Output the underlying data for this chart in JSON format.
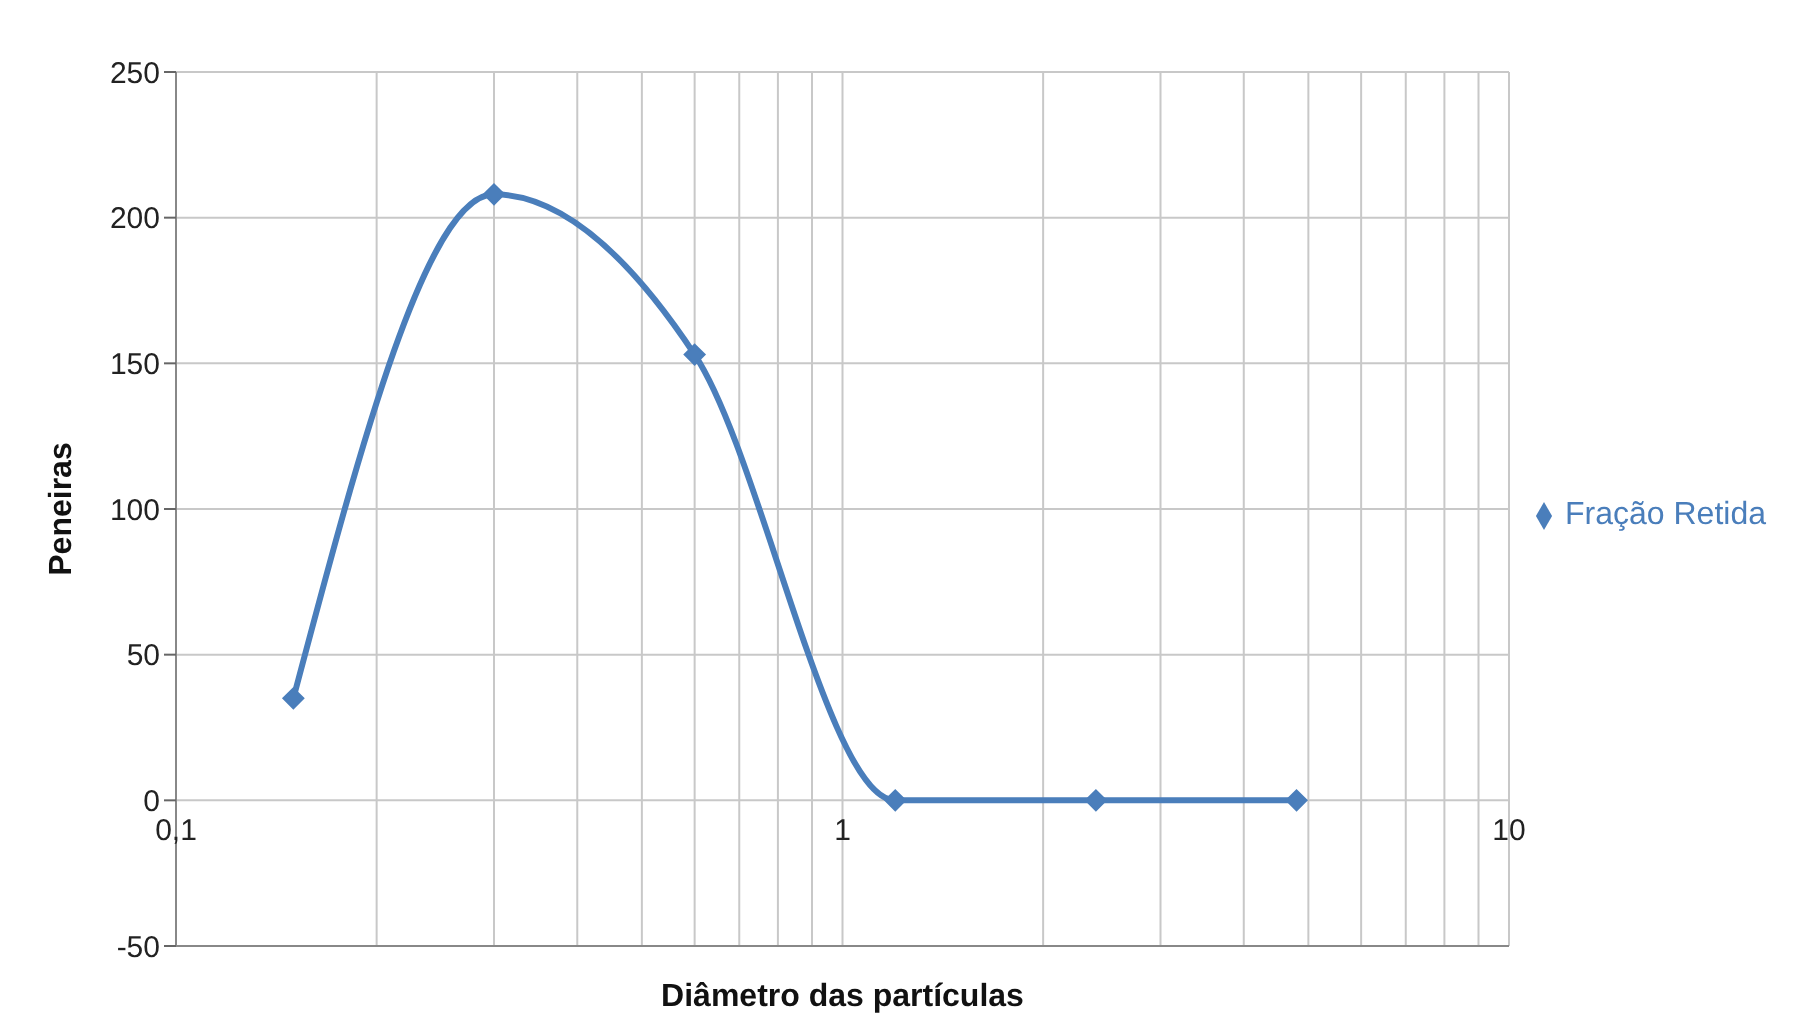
{
  "chart_data": {
    "type": "line",
    "xlabel": "Diâmetro das partículas",
    "ylabel": "Peneiras",
    "x": [
      0.15,
      0.3,
      0.6,
      1.2,
      2.4,
      4.8
    ],
    "series": [
      {
        "name": "Fração Retida",
        "color": "#4a7ebb",
        "values": [
          35,
          208,
          153,
          0,
          0,
          0
        ]
      }
    ],
    "log": "x",
    "xlim": [
      0.1,
      10
    ],
    "xticks": [
      {
        "value": 0.1,
        "label": "0,1"
      },
      {
        "value": 0.2,
        "label": null
      },
      {
        "value": 0.3,
        "label": null
      },
      {
        "value": 0.4,
        "label": null
      },
      {
        "value": 0.5,
        "label": null
      },
      {
        "value": 0.6,
        "label": null
      },
      {
        "value": 0.7,
        "label": null
      },
      {
        "value": 0.8,
        "label": null
      },
      {
        "value": 0.9,
        "label": null
      },
      {
        "value": 1,
        "label": "1"
      },
      {
        "value": 2,
        "label": null
      },
      {
        "value": 3,
        "label": null
      },
      {
        "value": 4,
        "label": null
      },
      {
        "value": 5,
        "label": null
      },
      {
        "value": 6,
        "label": null
      },
      {
        "value": 7,
        "label": null
      },
      {
        "value": 8,
        "label": null
      },
      {
        "value": 9,
        "label": null
      },
      {
        "value": 10,
        "label": "10"
      }
    ],
    "ylim": [
      -50,
      250
    ],
    "yticks": [
      -50,
      0,
      50,
      100,
      150,
      200,
      250
    ],
    "grid": true,
    "legend": "right",
    "marker": "diamond",
    "line_style": "solid"
  }
}
